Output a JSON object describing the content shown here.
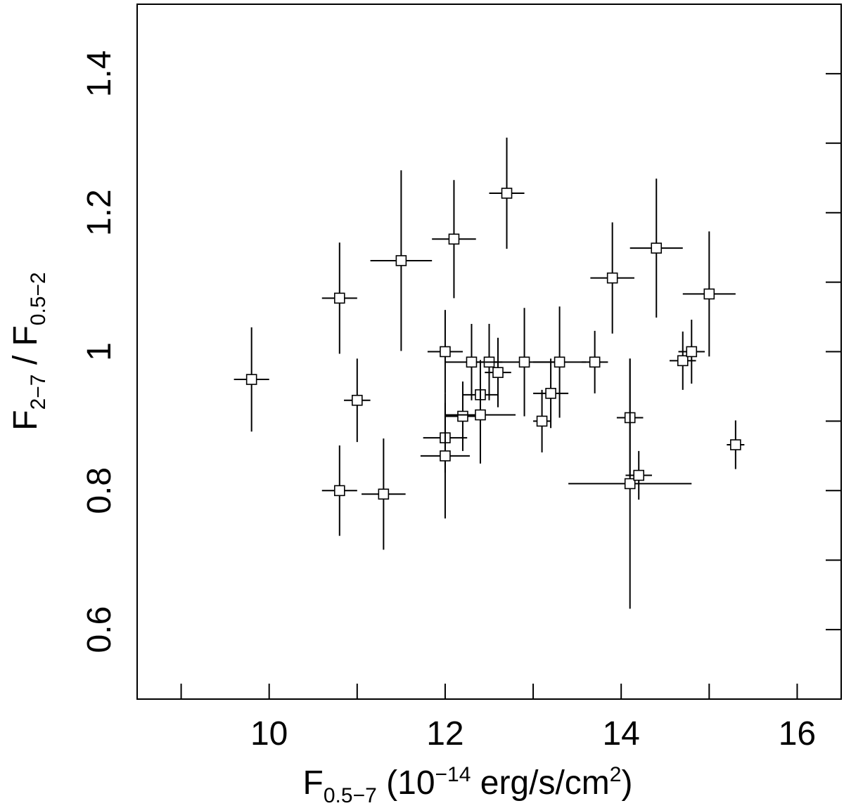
{
  "chart_data": {
    "type": "scatter",
    "xlim": [
      8.5,
      16.5
    ],
    "ylim": [
      0.5,
      1.5
    ],
    "xticks": [
      9,
      10,
      11,
      12,
      13,
      14,
      15,
      16
    ],
    "xtick_labels": [
      "10",
      "12",
      "14",
      "16"
    ],
    "xtick_label_values": [
      10,
      12,
      14,
      16
    ],
    "yticks": [
      0.6,
      0.7,
      0.8,
      0.9,
      1.0,
      1.1,
      1.2,
      1.3,
      1.4
    ],
    "ytick_labels": [
      "0.6",
      "0.8",
      "1",
      "1.2",
      "1.4"
    ],
    "ytick_label_values": [
      0.6,
      0.8,
      1.0,
      1.2,
      1.4
    ],
    "xlabel": {
      "prefix": "F",
      "sub": "0.5−7",
      "mid": " (10",
      "sup": "−14",
      "mid2": " erg/s/cm",
      "sup2": "2",
      "suffix": ")"
    },
    "ylabel": {
      "p1": "F",
      "s1": "2−7",
      "p2": " / F",
      "s2": "0.5−2"
    },
    "grid": false,
    "marker": "open-square",
    "points": [
      {
        "x": 9.8,
        "y": 0.96,
        "xerr": 0.2,
        "yerr_lo": 0.075,
        "yerr_hi": 0.075
      },
      {
        "x": 10.8,
        "y": 1.077,
        "xerr": 0.2,
        "yerr_lo": 0.08,
        "yerr_hi": 0.08
      },
      {
        "x": 10.8,
        "y": 0.8,
        "xerr": 0.2,
        "yerr_lo": 0.065,
        "yerr_hi": 0.065
      },
      {
        "x": 11.0,
        "y": 0.93,
        "xerr": 0.15,
        "yerr_lo": 0.06,
        "yerr_hi": 0.06
      },
      {
        "x": 11.3,
        "y": 0.795,
        "xerr": 0.25,
        "yerr_lo": 0.08,
        "yerr_hi": 0.08
      },
      {
        "x": 11.5,
        "y": 1.131,
        "xerr": 0.35,
        "yerr_lo": 0.13,
        "yerr_hi": 0.13
      },
      {
        "x": 12.0,
        "y": 1.0,
        "xerr": 0.2,
        "yerr_lo": 0.06,
        "yerr_hi": 0.06
      },
      {
        "x": 12.0,
        "y": 0.876,
        "xerr": 0.25,
        "yerr_lo": 0.05,
        "yerr_hi": 0.05
      },
      {
        "x": 12.0,
        "y": 0.85,
        "xerr": 0.28,
        "yerr_lo": 0.09,
        "yerr_hi": 0.09
      },
      {
        "x": 12.1,
        "y": 1.162,
        "xerr": 0.25,
        "yerr_lo": 0.085,
        "yerr_hi": 0.085
      },
      {
        "x": 12.2,
        "y": 0.907,
        "xerr": 0.2,
        "yerr_lo": 0.05,
        "yerr_hi": 0.05
      },
      {
        "x": 12.3,
        "y": 0.985,
        "xerr": 0.3,
        "yerr_lo": 0.055,
        "yerr_hi": 0.055
      },
      {
        "x": 12.4,
        "y": 0.938,
        "xerr": 0.2,
        "yerr_lo": 0.05,
        "yerr_hi": 0.05
      },
      {
        "x": 12.4,
        "y": 0.909,
        "xerr": 0.4,
        "yerr_lo": 0.07,
        "yerr_hi": 0.07
      },
      {
        "x": 12.5,
        "y": 0.985,
        "xerr": 0.15,
        "yerr_lo": 0.055,
        "yerr_hi": 0.055
      },
      {
        "x": 12.6,
        "y": 0.97,
        "xerr": 0.15,
        "yerr_lo": 0.05,
        "yerr_hi": 0.05
      },
      {
        "x": 12.7,
        "y": 1.228,
        "xerr": 0.2,
        "yerr_lo": 0.08,
        "yerr_hi": 0.08
      },
      {
        "x": 12.9,
        "y": 0.985,
        "xerr": 0.45,
        "yerr_lo": 0.078,
        "yerr_hi": 0.078
      },
      {
        "x": 13.1,
        "y": 0.9,
        "xerr": 0.1,
        "yerr_lo": 0.045,
        "yerr_hi": 0.045
      },
      {
        "x": 13.2,
        "y": 0.94,
        "xerr": 0.2,
        "yerr_lo": 0.05,
        "yerr_hi": 0.05
      },
      {
        "x": 13.3,
        "y": 0.985,
        "xerr": 0.3,
        "yerr_lo": 0.08,
        "yerr_hi": 0.08
      },
      {
        "x": 13.7,
        "y": 0.985,
        "xerr": 0.15,
        "yerr_lo": 0.045,
        "yerr_hi": 0.045
      },
      {
        "x": 13.9,
        "y": 1.106,
        "xerr": 0.25,
        "yerr_lo": 0.08,
        "yerr_hi": 0.08
      },
      {
        "x": 14.1,
        "y": 0.905,
        "xerr": 0.15,
        "yerr_lo": 0.085,
        "yerr_hi": 0.085
      },
      {
        "x": 14.1,
        "y": 0.81,
        "xerr": 0.7,
        "yerr_lo": 0.18,
        "yerr_hi": 0.18
      },
      {
        "x": 14.2,
        "y": 0.822,
        "xerr": 0.15,
        "yerr_lo": 0.035,
        "yerr_hi": 0.035
      },
      {
        "x": 14.4,
        "y": 1.149,
        "xerr": 0.3,
        "yerr_lo": 0.1,
        "yerr_hi": 0.1
      },
      {
        "x": 14.7,
        "y": 0.987,
        "xerr": 0.15,
        "yerr_lo": 0.042,
        "yerr_hi": 0.042
      },
      {
        "x": 14.8,
        "y": 1.0,
        "xerr": 0.15,
        "yerr_lo": 0.046,
        "yerr_hi": 0.046
      },
      {
        "x": 15.0,
        "y": 1.083,
        "xerr": 0.3,
        "yerr_lo": 0.09,
        "yerr_hi": 0.09
      },
      {
        "x": 15.3,
        "y": 0.866,
        "xerr": 0.1,
        "yerr_lo": 0.035,
        "yerr_hi": 0.035
      }
    ]
  }
}
